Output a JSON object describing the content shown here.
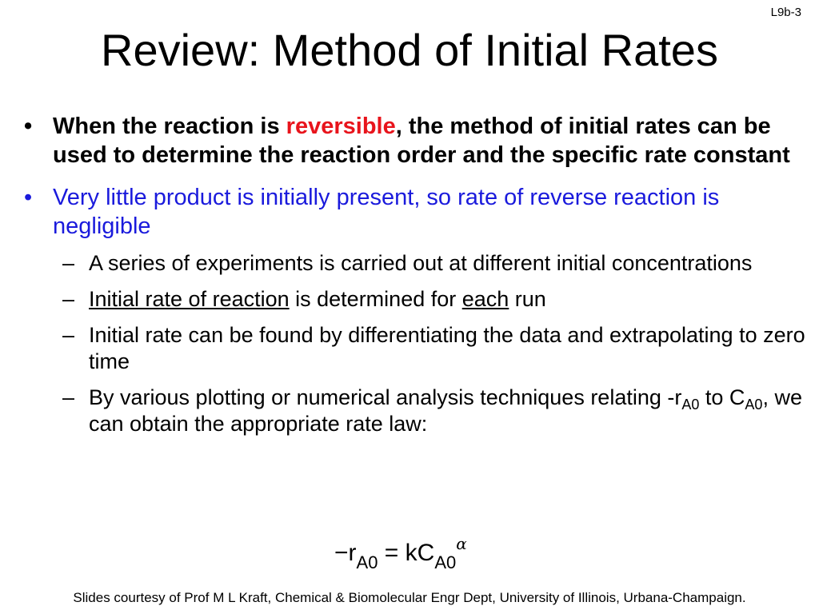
{
  "slide_id": "L9b-3",
  "title": "Review: Method of Initial Rates",
  "bullet_marker": "•",
  "dash_marker": "–",
  "bullet1": {
    "pre": "When the reaction is ",
    "highlight": "reversible",
    "post": ", the method of initial rates can be used to determine the reaction order and the specific rate constant"
  },
  "bullet2": "Very little product is initially present, so rate of reverse reaction is negligible",
  "sub1": "A series of experiments is carried out at different initial concentrations",
  "sub2": {
    "u1": "Initial rate of reaction",
    "mid": " is determined for ",
    "u2": "each",
    "end": " run"
  },
  "sub3": "Initial rate can be found by differentiating the data and extrapolating to zero time",
  "sub4": {
    "pre": "By various plotting or numerical analysis techniques relating -r",
    "sub_a": "A0",
    "mid": " to C",
    "sub_b": "A0",
    "post": ", we can obtain the appropriate rate law:"
  },
  "equation": {
    "lhs": "−r",
    "lhs_sub": "A0",
    "eq": " = ",
    "rhs": "kC",
    "rhs_sub": "A0",
    "exponent": "α"
  },
  "footer": "Slides courtesy of Prof M L Kraft, Chemical & Biomolecular Engr Dept, University of Illinois, Urbana-Champaign."
}
